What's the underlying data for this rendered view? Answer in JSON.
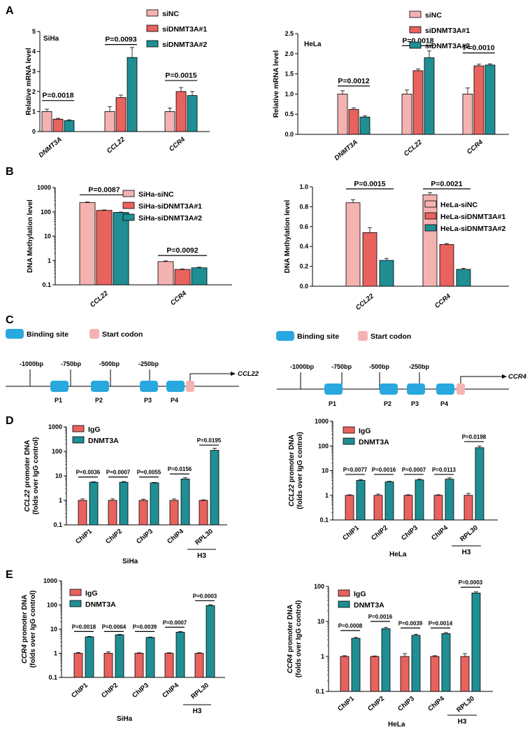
{
  "colors": {
    "c0": "#f4b3b1",
    "c1": "#e8625e",
    "c2": "#1f8f94",
    "ig": "#e8625e",
    "dn": "#1f8f94",
    "binding": "#29a8df",
    "start": "#f4b3b1"
  },
  "panels": {
    "A": "A",
    "B": "B",
    "C": "C",
    "D": "D",
    "E": "E"
  },
  "schematic": {
    "legend_binding": "Binding site",
    "legend_start": "Start codon",
    "left": {
      "gene": "CCL22",
      "positions": [
        "-1000bp",
        "-750bp",
        "-500bp",
        "-250bp"
      ],
      "sites": [
        "P1",
        "P2",
        "P3",
        "P4"
      ]
    },
    "right": {
      "gene": "CCR4",
      "positions": [
        "-1000bp",
        "-750bp",
        "-500bp",
        "-250bp"
      ],
      "sites": [
        "P1",
        "P2",
        "P3",
        "P4"
      ]
    }
  },
  "chart_data": [
    {
      "id": "A-SiHa",
      "type": "bar",
      "cell_label": "SiHa",
      "ylabel": "Relative mRNA level",
      "ylim": [
        0,
        5
      ],
      "scale": "linear",
      "yticks": [
        "0",
        "1",
        "2",
        "3",
        "4",
        "5"
      ],
      "categories": [
        "DNMT3A",
        "CCL22",
        "CCR4"
      ],
      "series": [
        {
          "name": "siNC",
          "values": [
            1.0,
            1.0,
            1.0
          ],
          "errors": [
            0.12,
            0.25,
            0.18
          ]
        },
        {
          "name": "siDNMT3A#1",
          "values": [
            0.62,
            1.7,
            2.0
          ],
          "errors": [
            0.04,
            0.12,
            0.2
          ]
        },
        {
          "name": "siDNMT3A#2",
          "values": [
            0.55,
            3.7,
            1.8
          ],
          "errors": [
            0.04,
            0.5,
            0.2
          ]
        }
      ],
      "annotations": [
        {
          "text": "P=0.0018",
          "category": 0,
          "y": 1.55
        },
        {
          "text": "P=0.0093",
          "category": 1,
          "y": 4.35
        },
        {
          "text": "P=0.0015",
          "category": 2,
          "y": 2.55
        }
      ]
    },
    {
      "id": "A-HeLa",
      "type": "bar",
      "cell_label": "HeLa",
      "ylabel": "Relative mRNA level",
      "ylim": [
        0,
        2.5
      ],
      "scale": "linear",
      "yticks": [
        "0.0",
        "0.5",
        "1.0",
        "1.5",
        "2.0",
        "2.5"
      ],
      "categories": [
        "DNMT3A",
        "CCL22",
        "CCR4"
      ],
      "series": [
        {
          "name": "siNC",
          "values": [
            1.0,
            1.0,
            1.0
          ],
          "errors": [
            0.08,
            0.1,
            0.15
          ]
        },
        {
          "name": "siDNMT3A#1",
          "values": [
            0.62,
            1.58,
            1.7
          ],
          "errors": [
            0.04,
            0.04,
            0.04
          ]
        },
        {
          "name": "siDNMT3A#2",
          "values": [
            0.43,
            1.9,
            1.72
          ],
          "errors": [
            0.03,
            0.17,
            0.03
          ]
        }
      ],
      "annotations": [
        {
          "text": "P=0.0012",
          "category": 0,
          "y": 1.2
        },
        {
          "text": "P=0.0018",
          "category": 1,
          "y": 2.2
        },
        {
          "text": "P=0.0010",
          "category": 2,
          "y": 2.02
        }
      ]
    },
    {
      "id": "B-SiHa",
      "type": "bar",
      "cell_label": "",
      "ylabel": "DNA Methylation level",
      "ylim": [
        0.1,
        1000
      ],
      "scale": "log",
      "yticks": [
        "0.1",
        "1",
        "10",
        "100",
        "1000"
      ],
      "categories": [
        "CCL22",
        "CCR4"
      ],
      "series": [
        {
          "name": "SiHa-siNC",
          "values": [
            240,
            0.9
          ],
          "errors": [
            15,
            0.06
          ]
        },
        {
          "name": "SiHa-siDNMT3A#1",
          "values": [
            115,
            0.43
          ],
          "errors": [
            5,
            0.02
          ]
        },
        {
          "name": "SiHa-siDNMT3A#2",
          "values": [
            95,
            0.5
          ],
          "errors": [
            3,
            0.03
          ]
        }
      ],
      "annotations": [
        {
          "text": "P=0.0087",
          "category": 0,
          "y": 500
        },
        {
          "text": "P=0.0092",
          "category": 1,
          "y": 1.6
        }
      ]
    },
    {
      "id": "B-HeLa",
      "type": "bar",
      "cell_label": "",
      "ylabel": "DNA Methylation level",
      "ylim": [
        0,
        1.0
      ],
      "scale": "linear",
      "yticks": [
        "0.0",
        "0.2",
        "0.4",
        "0.6",
        "0.8",
        "1.0"
      ],
      "categories": [
        "CCL22",
        "CCR4"
      ],
      "series": [
        {
          "name": "HeLa-siNC",
          "values": [
            0.84,
            0.92
          ],
          "errors": [
            0.03,
            0.02
          ]
        },
        {
          "name": "HeLa-siDNMT3A#1",
          "values": [
            0.54,
            0.42
          ],
          "errors": [
            0.05,
            0.01
          ]
        },
        {
          "name": "HeLa-siDNMT3A#2",
          "values": [
            0.26,
            0.17
          ],
          "errors": [
            0.02,
            0.01
          ]
        }
      ],
      "annotations": [
        {
          "text": "P=0.0015",
          "category": 0,
          "y": 0.98
        },
        {
          "text": "P=0.0021",
          "category": 1,
          "y": 0.98
        }
      ]
    },
    {
      "id": "D-SiHa",
      "type": "bar",
      "cell_label": "SiHa",
      "ylabel_gene": "CCL22",
      "ylabel_rest": " promoter DNA",
      "ylabel2": "(folds over IgG control)",
      "ylim": [
        0.1,
        1000
      ],
      "scale": "log",
      "yticks": [
        "0.1",
        "1",
        "10",
        "100",
        "1000"
      ],
      "categories": [
        "ChIP1",
        "ChIP2",
        "ChIP3",
        "ChIP4",
        "RPL30"
      ],
      "bracket_label": "H3",
      "series": [
        {
          "name": "IgG",
          "values": [
            1.0,
            1.0,
            1.0,
            1.0,
            1.0
          ],
          "errors": [
            0.15,
            0.15,
            0.12,
            0.15,
            0.05
          ]
        },
        {
          "name": "DNMT3A",
          "values": [
            5.5,
            5.5,
            5.2,
            7.5,
            110
          ],
          "errors": [
            0.3,
            0.4,
            0.2,
            1.0,
            25
          ]
        }
      ],
      "annotations": [
        {
          "text": "P=0.0036",
          "category": 0,
          "y": 9
        },
        {
          "text": "P=0.0007",
          "category": 1,
          "y": 9
        },
        {
          "text": "P=0.0055",
          "category": 2,
          "y": 9
        },
        {
          "text": "P=0.0156",
          "category": 3,
          "y": 12
        },
        {
          "text": "P=0.0195",
          "category": 4,
          "y": 180
        }
      ]
    },
    {
      "id": "D-HeLa",
      "type": "bar",
      "cell_label": "HeLa",
      "ylabel_gene": "CCL22",
      "ylabel_rest": " promoter DNA",
      "ylabel2": "(folds over IgG control)",
      "ylim": [
        0.1,
        1000
      ],
      "scale": "log",
      "yticks": [
        "0.1",
        "1",
        "10",
        "100",
        "1000"
      ],
      "categories": [
        "ChIP1",
        "ChIP2",
        "ChIP3",
        "ChIP4",
        "RPL30"
      ],
      "bracket_label": "H3",
      "series": [
        {
          "name": "IgG",
          "values": [
            1.0,
            1.0,
            1.0,
            1.0,
            1.0
          ],
          "errors": [
            0.05,
            0.12,
            0.05,
            0.05,
            0.2
          ]
        },
        {
          "name": "DNMT3A",
          "values": [
            4.0,
            3.5,
            4.2,
            4.5,
            85
          ],
          "errors": [
            0.3,
            0.2,
            0.3,
            0.6,
            15
          ]
        }
      ],
      "annotations": [
        {
          "text": "P=0.0077",
          "category": 0,
          "y": 7
        },
        {
          "text": "P=0.0016",
          "category": 1,
          "y": 7
        },
        {
          "text": "P=0.0007",
          "category": 2,
          "y": 7
        },
        {
          "text": "P=0.0113",
          "category": 3,
          "y": 7
        },
        {
          "text": "P=0.0198",
          "category": 4,
          "y": 150
        }
      ]
    },
    {
      "id": "E-SiHa",
      "type": "bar",
      "cell_label": "SiHa",
      "ylabel_gene": "CCR4",
      "ylabel_rest": " promoter DNA",
      "ylabel2": "(folds over IgG control)",
      "ylim": [
        0.1,
        1000
      ],
      "scale": "log",
      "yticks": [
        "0.1",
        "1",
        "10",
        "100",
        "1000"
      ],
      "categories": [
        "ChIP1",
        "ChIP2",
        "ChIP3",
        "ChIP4",
        "RPL30"
      ],
      "bracket_label": "H3",
      "series": [
        {
          "name": "IgG",
          "values": [
            1.0,
            1.0,
            1.0,
            1.0,
            1.0
          ],
          "errors": [
            0.08,
            0.15,
            0.05,
            0.05,
            0.05
          ]
        },
        {
          "name": "DNMT3A",
          "values": [
            4.8,
            5.8,
            4.5,
            7.5,
            95
          ],
          "errors": [
            0.2,
            0.3,
            0.2,
            0.4,
            8
          ]
        }
      ],
      "annotations": [
        {
          "text": "P=0.0018",
          "category": 0,
          "y": 8
        },
        {
          "text": "P=0.0064",
          "category": 1,
          "y": 8
        },
        {
          "text": "P=0.0039",
          "category": 2,
          "y": 8
        },
        {
          "text": "P=0.0007",
          "category": 3,
          "y": 12
        },
        {
          "text": "P=0.0003",
          "category": 4,
          "y": 150
        }
      ]
    },
    {
      "id": "E-HeLa",
      "type": "bar",
      "cell_label": "HeLa",
      "ylabel_gene": "CCR4",
      "ylabel_rest": " promoter DNA",
      "ylabel2": "(folds over IgG control)",
      "ylim": [
        0.1,
        100
      ],
      "scale": "log",
      "yticks": [
        "0.1",
        "1",
        "10",
        "100"
      ],
      "categories": [
        "ChIP1",
        "ChIP2",
        "ChIP3",
        "ChIP4",
        "RPL30"
      ],
      "bracket_label": "H3",
      "series": [
        {
          "name": "IgG",
          "values": [
            1.0,
            1.0,
            1.0,
            1.0,
            1.0
          ],
          "errors": [
            0.05,
            0.03,
            0.2,
            0.05,
            0.2
          ]
        },
        {
          "name": "DNMT3A",
          "values": [
            3.3,
            6.2,
            4.0,
            4.5,
            65
          ],
          "errors": [
            0.2,
            0.6,
            0.3,
            0.3,
            5
          ]
        }
      ],
      "annotations": [
        {
          "text": "P=0.0008",
          "category": 0,
          "y": 5.5
        },
        {
          "text": "P=0.0016",
          "category": 1,
          "y": 10
        },
        {
          "text": "P=0.0039",
          "category": 2,
          "y": 6.5
        },
        {
          "text": "P=0.0014",
          "category": 3,
          "y": 6.5
        },
        {
          "text": "P=0.0003",
          "category": 4,
          "y": 95
        }
      ]
    }
  ]
}
